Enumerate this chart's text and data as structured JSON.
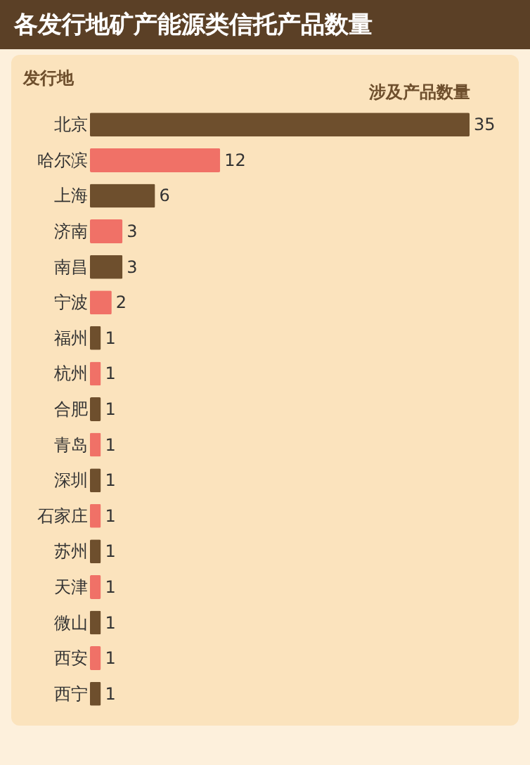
{
  "chart_data": {
    "type": "bar",
    "orientation": "horizontal",
    "title": "各发行地矿产能源类信托产品数量",
    "ylabel": "发行地",
    "xlabel": "涉及产品数量",
    "categories": [
      "北京",
      "哈尔滨",
      "上海",
      "济南",
      "南昌",
      "宁波",
      "福州",
      "杭州",
      "合肥",
      "青岛",
      "深圳",
      "石家庄",
      "苏州",
      "天津",
      "微山",
      "西安",
      "西宁"
    ],
    "values": [
      35,
      12,
      6,
      3,
      3,
      2,
      1,
      1,
      1,
      1,
      1,
      1,
      1,
      1,
      1,
      1,
      1
    ],
    "colors": [
      "#6e4f2d",
      "#f07167",
      "#6e4f2d",
      "#f07167",
      "#6e4f2d",
      "#f07167",
      "#6e4f2d",
      "#f07167",
      "#6e4f2d",
      "#f07167",
      "#6e4f2d",
      "#f07167",
      "#6e4f2d",
      "#f07167",
      "#6e4f2d",
      "#f07167",
      "#6e4f2d"
    ],
    "data_labels": true
  }
}
